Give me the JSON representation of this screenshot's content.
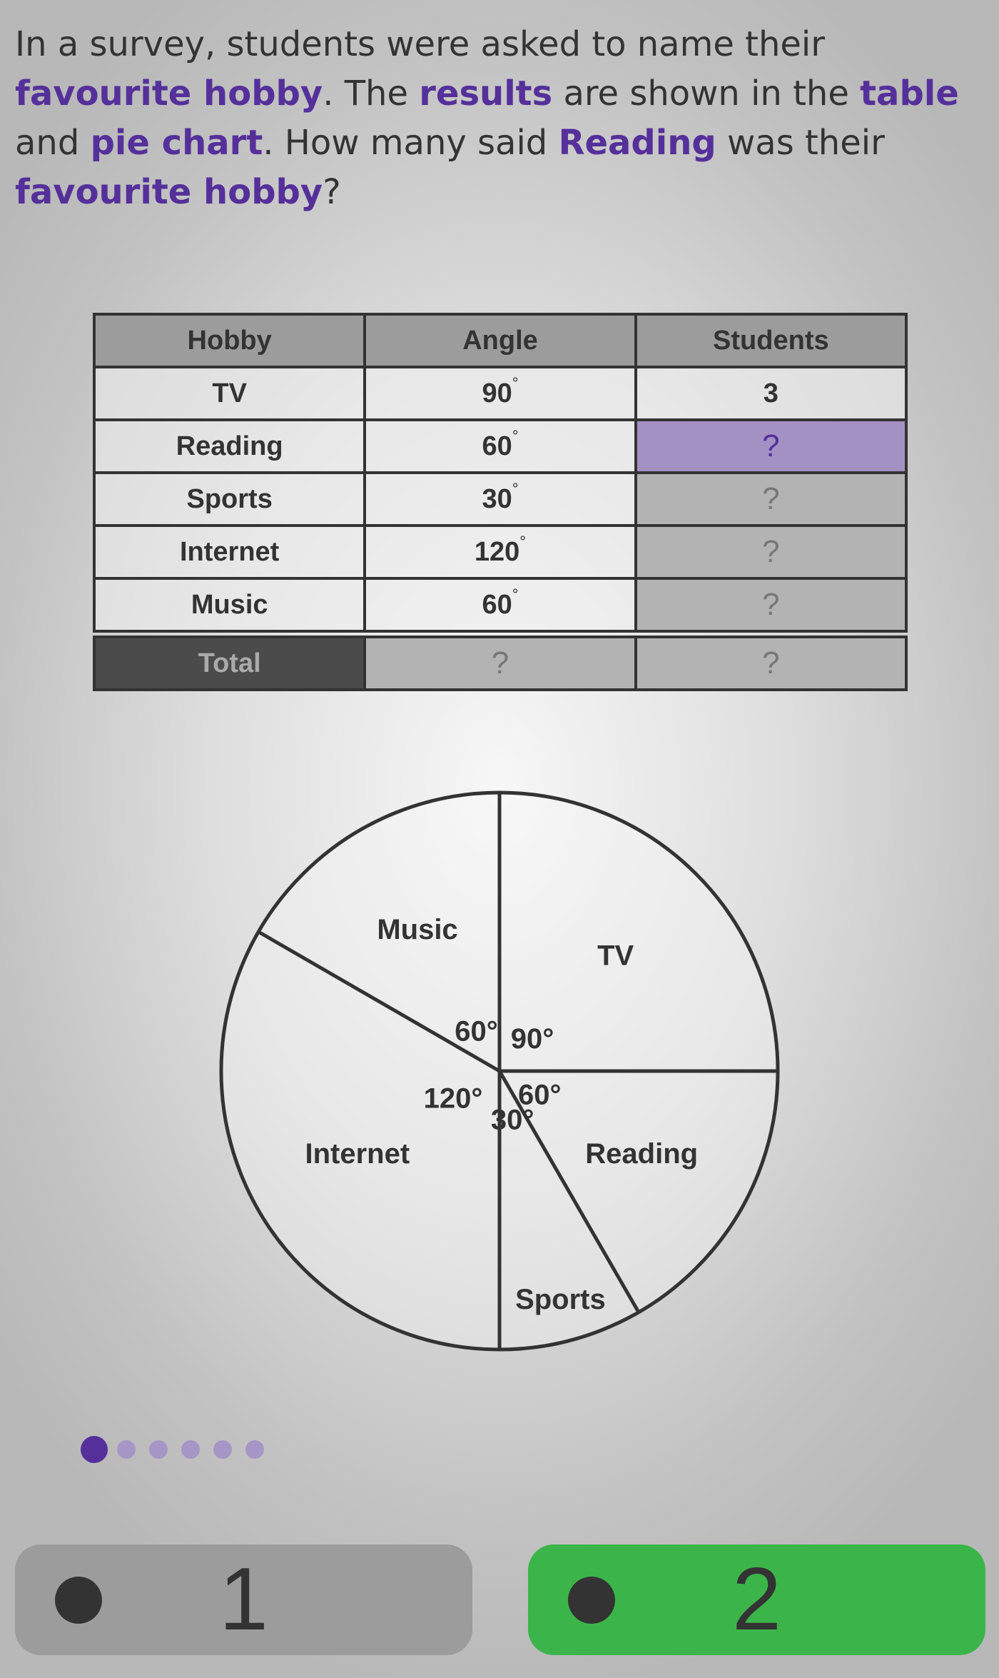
{
  "question": [
    {
      "text": "In a survey, students were asked to name their ",
      "hl": false
    },
    {
      "text": "favourite hobby",
      "hl": true
    },
    {
      "text": ". The ",
      "hl": false
    },
    {
      "text": "results",
      "hl": true
    },
    {
      "text": " are shown in the ",
      "hl": false
    },
    {
      "text": "table",
      "hl": true
    },
    {
      "text": " and ",
      "hl": false
    },
    {
      "text": "pie chart",
      "hl": true
    },
    {
      "text": ". How many said ",
      "hl": false
    },
    {
      "text": "Reading",
      "hl": true
    },
    {
      "text": " was their ",
      "hl": false
    },
    {
      "text": "favourite hobby",
      "hl": true
    },
    {
      "text": "?",
      "hl": false
    }
  ],
  "table": {
    "headers": [
      "Hobby",
      "Angle",
      "Students"
    ],
    "rows": [
      {
        "hobby": "TV",
        "angle": "90",
        "students": "3"
      },
      {
        "hobby": "Reading",
        "angle": "60",
        "students": "?"
      },
      {
        "hobby": "Sports",
        "angle": "30",
        "students": "?"
      },
      {
        "hobby": "Internet",
        "angle": "120",
        "students": "?"
      },
      {
        "hobby": "Music",
        "angle": "60",
        "students": "?"
      }
    ],
    "total": {
      "label": "Total",
      "angle": "?",
      "students": "?"
    },
    "degree_symbol": "°"
  },
  "chart_data": {
    "type": "pie",
    "start": "12 o'clock",
    "direction": "clockwise",
    "slices": [
      {
        "label": "TV",
        "angle": 90,
        "angle_label": "90°"
      },
      {
        "label": "Reading",
        "angle": 60,
        "angle_label": "60°"
      },
      {
        "label": "Sports",
        "angle": 30,
        "angle_label": "30°"
      },
      {
        "label": "Internet",
        "angle": 120,
        "angle_label": "120°"
      },
      {
        "label": "Music",
        "angle": 60,
        "angle_label": "60°"
      }
    ]
  },
  "progress": {
    "total_steps": 6,
    "current_step": 1,
    "active_color": "#55309a",
    "inactive_color": "#a696c6"
  },
  "answers": [
    {
      "label": "1",
      "color": "#9c9c9c"
    },
    {
      "label": "2",
      "color": "#3bb54a"
    }
  ],
  "colors": {
    "highlight": "#55309a",
    "correct": "#3bb54a"
  }
}
